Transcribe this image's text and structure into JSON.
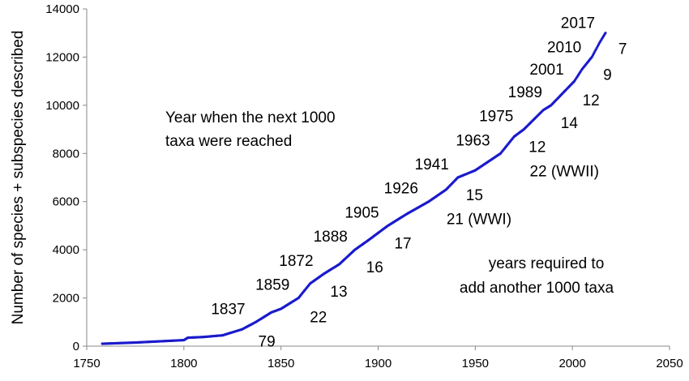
{
  "chart_data": {
    "type": "scatter",
    "title": "",
    "xlabel": "",
    "ylabel": "Number of species + subspecies described",
    "xlim": [
      1750,
      2050
    ],
    "ylim": [
      0,
      14000
    ],
    "x_ticks": [
      "1750",
      "1800",
      "1850",
      "1900",
      "1950",
      "2000",
      "2050"
    ],
    "y_ticks": [
      "0",
      "2000",
      "4000",
      "6000",
      "8000",
      "10000",
      "12000",
      "14000"
    ],
    "grid": false,
    "legend": "none",
    "series_color": "#1a1acc",
    "points": [
      [
        1758,
        100
      ],
      [
        1775,
        150
      ],
      [
        1800,
        250
      ],
      [
        1802,
        350
      ],
      [
        1810,
        380
      ],
      [
        1820,
        450
      ],
      [
        1830,
        700
      ],
      [
        1837,
        1000
      ],
      [
        1845,
        1400
      ],
      [
        1850,
        1550
      ],
      [
        1859,
        2000
      ],
      [
        1865,
        2600
      ],
      [
        1872,
        3000
      ],
      [
        1880,
        3400
      ],
      [
        1888,
        4000
      ],
      [
        1895,
        4400
      ],
      [
        1900,
        4700
      ],
      [
        1905,
        5000
      ],
      [
        1915,
        5500
      ],
      [
        1926,
        6000
      ],
      [
        1935,
        6500
      ],
      [
        1941,
        7000
      ],
      [
        1950,
        7300
      ],
      [
        1963,
        8000
      ],
      [
        1970,
        8700
      ],
      [
        1975,
        9000
      ],
      [
        1985,
        9800
      ],
      [
        1989,
        10000
      ],
      [
        1995,
        10500
      ],
      [
        2001,
        11000
      ],
      [
        2005,
        11500
      ],
      [
        2010,
        12000
      ],
      [
        2014,
        12600
      ],
      [
        2017,
        13000
      ]
    ],
    "year_labels": [
      {
        "text": "1837",
        "x": 1837,
        "y": 1000
      },
      {
        "text": "1859",
        "x": 1859,
        "y": 2000
      },
      {
        "text": "1872",
        "x": 1872,
        "y": 3000
      },
      {
        "text": "1888",
        "x": 1888,
        "y": 4000
      },
      {
        "text": "1905",
        "x": 1905,
        "y": 5000
      },
      {
        "text": "1926",
        "x": 1926,
        "y": 6000
      },
      {
        "text": "1941",
        "x": 1941,
        "y": 7000
      },
      {
        "text": "1963",
        "x": 1963,
        "y": 8000
      },
      {
        "text": "1975",
        "x": 1975,
        "y": 9000
      },
      {
        "text": "1989",
        "x": 1989,
        "y": 10000
      },
      {
        "text": "2001",
        "x": 2001,
        "y": 11000
      },
      {
        "text": "2010",
        "x": 2010,
        "y": 12000
      },
      {
        "text": "2017",
        "x": 2017,
        "y": 13000
      }
    ],
    "interval_labels": [
      {
        "text": "79"
      },
      {
        "text": "22"
      },
      {
        "text": "13"
      },
      {
        "text": "16"
      },
      {
        "text": "17"
      },
      {
        "text": "21 (WWI)"
      },
      {
        "text": "15"
      },
      {
        "text": "22 (WWII)"
      },
      {
        "text": "12"
      },
      {
        "text": "14"
      },
      {
        "text": "12"
      },
      {
        "text": "9"
      },
      {
        "text": "7"
      }
    ],
    "annotations": {
      "year_note_line1": "Year when the next 1000",
      "year_note_line2": "taxa were reached",
      "years_note_line1": "years required to",
      "years_note_line2": "add another 1000 taxa"
    }
  }
}
